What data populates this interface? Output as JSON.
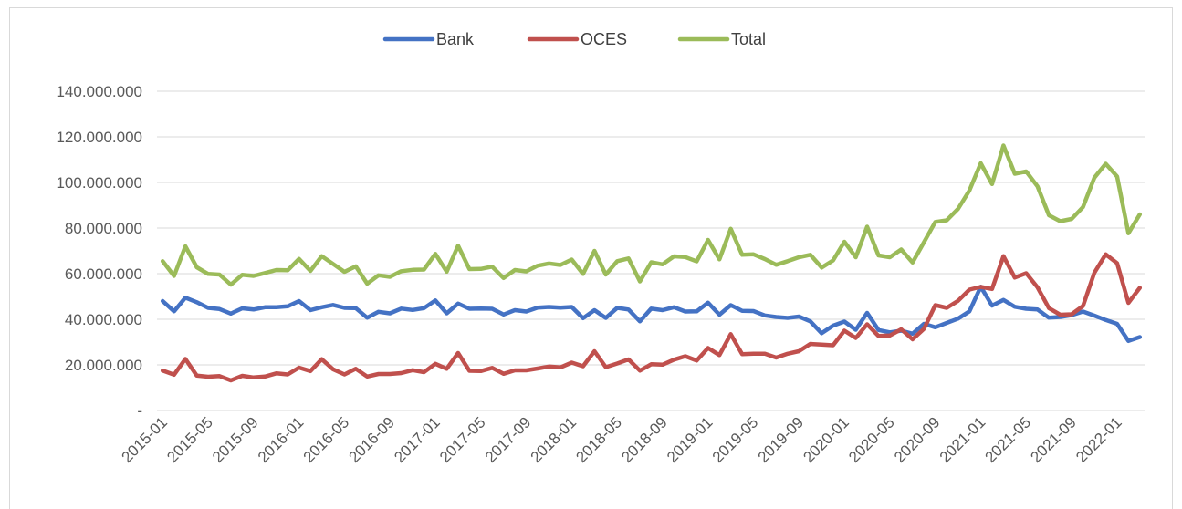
{
  "chart_data": {
    "type": "line",
    "title": "",
    "xlabel": "",
    "ylabel": "",
    "ylim": [
      0,
      140000000
    ],
    "y_ticks": [
      0,
      20000000,
      40000000,
      60000000,
      80000000,
      100000000,
      120000000,
      140000000
    ],
    "y_tick_labels": [
      "-",
      "20.000.000",
      "40.000.000",
      "60.000.000",
      "80.000.000",
      "100.000.000",
      "120.000.000",
      "140.000.000"
    ],
    "x_tick_labels": [
      "2015-01",
      "2015-05",
      "2015-09",
      "2016-01",
      "2016-05",
      "2016-09",
      "2017-01",
      "2017-05",
      "2017-09",
      "2018-01",
      "2018-05",
      "2018-09",
      "2019-01",
      "2019-05",
      "2019-09",
      "2020-01",
      "2020-05",
      "2020-09",
      "2021-01",
      "2021-05",
      "2021-09",
      "2022-01"
    ],
    "x_tick_every": 4,
    "grid": true,
    "legend_position": "top-center",
    "x": [
      "2015-01",
      "2015-02",
      "2015-03",
      "2015-04",
      "2015-05",
      "2015-06",
      "2015-07",
      "2015-08",
      "2015-09",
      "2015-10",
      "2015-11",
      "2015-12",
      "2016-01",
      "2016-02",
      "2016-03",
      "2016-04",
      "2016-05",
      "2016-06",
      "2016-07",
      "2016-08",
      "2016-09",
      "2016-10",
      "2016-11",
      "2016-12",
      "2017-01",
      "2017-02",
      "2017-03",
      "2017-04",
      "2017-05",
      "2017-06",
      "2017-07",
      "2017-08",
      "2017-09",
      "2017-10",
      "2017-11",
      "2017-12",
      "2018-01",
      "2018-02",
      "2018-03",
      "2018-04",
      "2018-05",
      "2018-06",
      "2018-07",
      "2018-08",
      "2018-09",
      "2018-10",
      "2018-11",
      "2018-12",
      "2019-01",
      "2019-02",
      "2019-03",
      "2019-04",
      "2019-05",
      "2019-06",
      "2019-07",
      "2019-08",
      "2019-09",
      "2019-10",
      "2019-11",
      "2019-12",
      "2020-01",
      "2020-02",
      "2020-03",
      "2020-04",
      "2020-05",
      "2020-06",
      "2020-07",
      "2020-08",
      "2020-09",
      "2020-10",
      "2020-11",
      "2020-12",
      "2021-01",
      "2021-02",
      "2021-03",
      "2021-04",
      "2021-05",
      "2021-06",
      "2021-07",
      "2021-08",
      "2021-09",
      "2021-10",
      "2021-11",
      "2021-12",
      "2022-01",
      "2022-02",
      "2022-03"
    ],
    "series": [
      {
        "name": "Bank",
        "color": "#4472c4",
        "values": [
          48000000,
          43500000,
          49500000,
          47500000,
          45000000,
          44500000,
          42500000,
          44800000,
          44300000,
          45300000,
          45300000,
          45700000,
          48000000,
          44000000,
          45300000,
          46300000,
          45000000,
          44900000,
          40700000,
          43300000,
          42600000,
          44700000,
          44100000,
          44900000,
          48300000,
          42600000,
          46900000,
          44600000,
          44700000,
          44600000,
          42100000,
          44000000,
          43400000,
          45100000,
          45400000,
          45100000,
          45400000,
          40500000,
          44000000,
          40600000,
          45000000,
          44300000,
          39100000,
          44700000,
          44000000,
          45300000,
          43400000,
          43500000,
          47300000,
          42000000,
          46200000,
          43700000,
          43600000,
          41700000,
          41000000,
          40600000,
          41200000,
          39100000,
          33900000,
          37200000,
          39000000,
          35400000,
          42800000,
          35300000,
          34300000,
          35000000,
          33700000,
          38000000,
          36500000,
          38400000,
          40300000,
          43500000,
          54300000,
          46000000,
          48500000,
          45500000,
          44600000,
          44300000,
          40700000,
          41000000,
          41800000,
          43400000,
          41600000,
          39700000,
          38000000,
          30500000,
          32200000
        ]
      },
      {
        "name": "OCES",
        "color": "#c0504d",
        "values": [
          17500000,
          15700000,
          22600000,
          15300000,
          14800000,
          15100000,
          13200000,
          15200000,
          14500000,
          14900000,
          16300000,
          15800000,
          18800000,
          17300000,
          22500000,
          18100000,
          15800000,
          18300000,
          14900000,
          16000000,
          16000000,
          16400000,
          17700000,
          16800000,
          20500000,
          18300000,
          25200000,
          17400000,
          17300000,
          18700000,
          16100000,
          17600000,
          17600000,
          18400000,
          19300000,
          18900000,
          21000000,
          19400000,
          26000000,
          19000000,
          20600000,
          22400000,
          17500000,
          20300000,
          20100000,
          22300000,
          23800000,
          21900000,
          27400000,
          24300000,
          33500000,
          24700000,
          24900000,
          24900000,
          23200000,
          24900000,
          26000000,
          29200000,
          28900000,
          28600000,
          35000000,
          31800000,
          37800000,
          32700000,
          32900000,
          35600000,
          31200000,
          35800000,
          46200000,
          45000000,
          48100000,
          53000000,
          54200000,
          53300000,
          67700000,
          58300000,
          60200000,
          54000000,
          44900000,
          42000000,
          42200000,
          45800000,
          60400000,
          68500000,
          64600000,
          47200000,
          53800000
        ]
      },
      {
        "name": "Total",
        "color": "#9bbb59",
        "values": [
          65500000,
          59000000,
          72000000,
          62800000,
          59900000,
          59600000,
          55200000,
          59500000,
          59000000,
          60300000,
          61600000,
          61500000,
          66500000,
          61200000,
          67700000,
          64300000,
          60800000,
          63200000,
          55600000,
          59300000,
          58600000,
          61100000,
          61700000,
          61800000,
          68700000,
          60900000,
          72300000,
          62000000,
          62100000,
          63100000,
          58100000,
          61600000,
          61000000,
          63500000,
          64500000,
          63800000,
          66200000,
          59900000,
          70000000,
          59600000,
          65500000,
          66700000,
          56600000,
          65000000,
          64100000,
          67600000,
          67300000,
          65400000,
          74800000,
          66300000,
          79700000,
          68300000,
          68500000,
          66400000,
          63900000,
          65500000,
          67200000,
          68300000,
          62700000,
          65800000,
          74000000,
          67200000,
          80600000,
          68000000,
          67200000,
          70600000,
          64900000,
          73800000,
          82700000,
          83400000,
          88400000,
          96500000,
          108400000,
          99300000,
          116200000,
          103800000,
          104800000,
          98300000,
          85600000,
          83000000,
          84000000,
          89200000,
          102100000,
          108200000,
          102600000,
          77700000,
          86000000
        ]
      }
    ]
  }
}
